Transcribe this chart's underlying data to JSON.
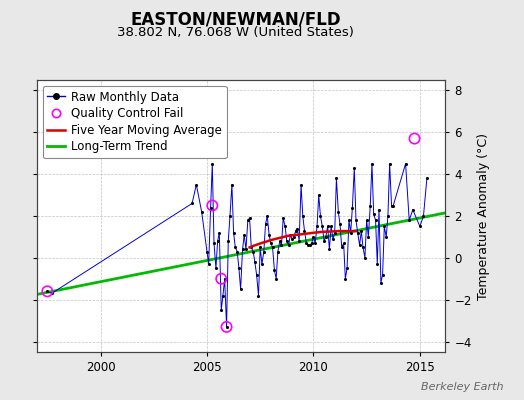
{
  "title": "EASTON/NEWMAN/FLD",
  "subtitle": "38.802 N, 76.068 W (United States)",
  "ylabel": "Temperature Anomaly (°C)",
  "watermark": "Berkeley Earth",
  "ylim": [
    -4.5,
    8.5
  ],
  "xlim": [
    1997.0,
    2016.2
  ],
  "yticks": [
    -4,
    -2,
    0,
    2,
    4,
    6,
    8
  ],
  "xticks": [
    2000,
    2005,
    2010,
    2015
  ],
  "bg_color": "#e8e8e8",
  "plot_bg_color": "#ffffff",
  "grid_color": "#aaaaaa",
  "raw_monthly": [
    [
      1997.5,
      -1.6
    ],
    [
      1997.7,
      -1.7
    ],
    [
      2004.3,
      2.6
    ],
    [
      2004.5,
      3.5
    ],
    [
      2004.75,
      2.2
    ],
    [
      2005.0,
      0.3
    ],
    [
      2005.08,
      -0.3
    ],
    [
      2005.17,
      2.4
    ],
    [
      2005.25,
      4.5
    ],
    [
      2005.33,
      0.7
    ],
    [
      2005.42,
      -0.5
    ],
    [
      2005.5,
      0.8
    ],
    [
      2005.58,
      1.2
    ],
    [
      2005.67,
      -2.5
    ],
    [
      2005.75,
      -1.8
    ],
    [
      2005.83,
      -1.0
    ],
    [
      2005.92,
      -3.3
    ],
    [
      2006.0,
      0.8
    ],
    [
      2006.08,
      2.0
    ],
    [
      2006.17,
      3.5
    ],
    [
      2006.25,
      1.2
    ],
    [
      2006.33,
      0.5
    ],
    [
      2006.42,
      0.3
    ],
    [
      2006.5,
      -0.5
    ],
    [
      2006.58,
      -1.5
    ],
    [
      2006.67,
      0.4
    ],
    [
      2006.75,
      1.1
    ],
    [
      2006.83,
      0.4
    ],
    [
      2006.92,
      1.8
    ],
    [
      2007.0,
      1.9
    ],
    [
      2007.08,
      0.5
    ],
    [
      2007.17,
      0.3
    ],
    [
      2007.25,
      -0.2
    ],
    [
      2007.33,
      -0.8
    ],
    [
      2007.42,
      -1.8
    ],
    [
      2007.5,
      0.5
    ],
    [
      2007.58,
      -0.3
    ],
    [
      2007.67,
      0.3
    ],
    [
      2007.75,
      1.6
    ],
    [
      2007.83,
      2.0
    ],
    [
      2007.92,
      1.1
    ],
    [
      2008.0,
      0.7
    ],
    [
      2008.08,
      0.5
    ],
    [
      2008.17,
      -0.6
    ],
    [
      2008.25,
      -1.0
    ],
    [
      2008.33,
      0.3
    ],
    [
      2008.42,
      0.8
    ],
    [
      2008.5,
      0.6
    ],
    [
      2008.58,
      1.9
    ],
    [
      2008.67,
      1.5
    ],
    [
      2008.75,
      0.8
    ],
    [
      2008.83,
      0.6
    ],
    [
      2008.92,
      1.1
    ],
    [
      2009.0,
      0.9
    ],
    [
      2009.08,
      1.0
    ],
    [
      2009.17,
      1.3
    ],
    [
      2009.25,
      1.4
    ],
    [
      2009.33,
      0.8
    ],
    [
      2009.42,
      3.5
    ],
    [
      2009.5,
      2.0
    ],
    [
      2009.58,
      1.3
    ],
    [
      2009.67,
      0.7
    ],
    [
      2009.75,
      0.6
    ],
    [
      2009.83,
      0.6
    ],
    [
      2009.92,
      0.7
    ],
    [
      2010.0,
      1.0
    ],
    [
      2010.08,
      0.7
    ],
    [
      2010.17,
      1.5
    ],
    [
      2010.25,
      3.0
    ],
    [
      2010.33,
      2.0
    ],
    [
      2010.42,
      1.5
    ],
    [
      2010.5,
      0.8
    ],
    [
      2010.58,
      1.0
    ],
    [
      2010.67,
      1.5
    ],
    [
      2010.75,
      0.4
    ],
    [
      2010.83,
      1.5
    ],
    [
      2010.92,
      0.9
    ],
    [
      2011.0,
      1.2
    ],
    [
      2011.08,
      3.8
    ],
    [
      2011.17,
      2.2
    ],
    [
      2011.25,
      1.6
    ],
    [
      2011.33,
      0.5
    ],
    [
      2011.42,
      0.7
    ],
    [
      2011.5,
      -1.0
    ],
    [
      2011.58,
      -0.5
    ],
    [
      2011.67,
      1.8
    ],
    [
      2011.75,
      1.2
    ],
    [
      2011.83,
      2.4
    ],
    [
      2011.92,
      4.3
    ],
    [
      2012.0,
      1.8
    ],
    [
      2012.08,
      1.2
    ],
    [
      2012.17,
      0.6
    ],
    [
      2012.25,
      1.3
    ],
    [
      2012.33,
      0.5
    ],
    [
      2012.42,
      0.0
    ],
    [
      2012.5,
      1.8
    ],
    [
      2012.58,
      1.0
    ],
    [
      2012.67,
      2.5
    ],
    [
      2012.75,
      4.5
    ],
    [
      2012.83,
      2.1
    ],
    [
      2012.92,
      1.8
    ],
    [
      2013.0,
      -0.3
    ],
    [
      2013.08,
      2.3
    ],
    [
      2013.17,
      -1.2
    ],
    [
      2013.25,
      -0.8
    ],
    [
      2013.33,
      1.5
    ],
    [
      2013.42,
      1.0
    ],
    [
      2013.5,
      2.0
    ],
    [
      2013.58,
      4.5
    ],
    [
      2013.67,
      2.5
    ],
    [
      2013.75,
      2.5
    ],
    [
      2014.33,
      4.5
    ],
    [
      2014.5,
      1.8
    ],
    [
      2014.67,
      2.3
    ],
    [
      2015.0,
      1.5
    ],
    [
      2015.17,
      2.0
    ],
    [
      2015.33,
      3.8
    ]
  ],
  "qc_fail": [
    [
      1997.5,
      -1.6
    ],
    [
      2005.25,
      2.5
    ],
    [
      2005.67,
      -1.0
    ],
    [
      2005.92,
      -3.3
    ],
    [
      2014.75,
      5.7
    ]
  ],
  "five_year_ma": [
    [
      2007.0,
      0.5
    ],
    [
      2007.2,
      0.58
    ],
    [
      2007.4,
      0.65
    ],
    [
      2007.6,
      0.72
    ],
    [
      2007.8,
      0.78
    ],
    [
      2008.0,
      0.85
    ],
    [
      2008.2,
      0.9
    ],
    [
      2008.4,
      0.95
    ],
    [
      2008.6,
      1.0
    ],
    [
      2008.8,
      1.05
    ],
    [
      2009.0,
      1.08
    ],
    [
      2009.2,
      1.1
    ],
    [
      2009.4,
      1.12
    ],
    [
      2009.6,
      1.15
    ],
    [
      2009.8,
      1.17
    ],
    [
      2010.0,
      1.2
    ],
    [
      2010.2,
      1.22
    ],
    [
      2010.4,
      1.24
    ],
    [
      2010.6,
      1.25
    ],
    [
      2010.8,
      1.26
    ],
    [
      2011.0,
      1.27
    ],
    [
      2011.2,
      1.28
    ],
    [
      2011.4,
      1.28
    ],
    [
      2011.6,
      1.28
    ],
    [
      2011.8,
      1.28
    ],
    [
      2012.0,
      1.28
    ]
  ],
  "trend_x": [
    1997.0,
    2016.2
  ],
  "trend_y": [
    -1.75,
    2.15
  ],
  "raw_line_color": "#0000dd",
  "raw_dot_color": "#000000",
  "qc_color": "#ff00ff",
  "ma_color": "#dd0000",
  "trend_color": "#00bb00",
  "legend_fontsize": 8.5,
  "title_fontsize": 12,
  "subtitle_fontsize": 9.5,
  "tick_fontsize": 8.5
}
